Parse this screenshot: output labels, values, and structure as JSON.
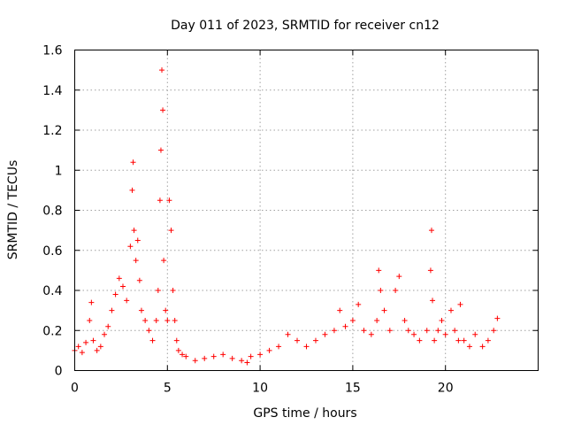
{
  "chart_data": {
    "type": "scatter",
    "title": "Day 011 of 2023, SRMTID for receiver cn12",
    "xlabel": "GPS time / hours",
    "ylabel": "SRMTID / TECUs",
    "xlim": [
      0,
      25
    ],
    "ylim": [
      0,
      1.6
    ],
    "xticks": [
      0,
      5,
      10,
      15,
      20
    ],
    "xtick_labels": [
      "0",
      "5",
      "10",
      "15",
      "20"
    ],
    "yticks": [
      0,
      0.2,
      0.4,
      0.6,
      0.8,
      1.0,
      1.2,
      1.4,
      1.6
    ],
    "ytick_labels": [
      "0",
      "0.2",
      "0.4",
      "0.6",
      "0.8",
      "1",
      "1.2",
      "1.4",
      "1.6"
    ],
    "grid": true,
    "marker": "plus",
    "series": [
      {
        "name": "cn12",
        "color": "#ff0000",
        "x": [
          0.0,
          0.2,
          0.4,
          0.6,
          0.8,
          0.9,
          1.0,
          1.2,
          1.4,
          1.6,
          1.8,
          2.0,
          2.2,
          2.4,
          2.6,
          2.8,
          3.0,
          3.1,
          3.15,
          3.2,
          3.3,
          3.4,
          3.5,
          3.6,
          3.8,
          4.0,
          4.2,
          4.4,
          4.5,
          4.6,
          4.65,
          4.7,
          4.75,
          4.8,
          4.9,
          5.0,
          5.1,
          5.2,
          5.3,
          5.4,
          5.5,
          5.6,
          5.8,
          6.0,
          6.5,
          7.0,
          7.5,
          8.0,
          8.5,
          9.0,
          9.3,
          9.5,
          10.0,
          10.5,
          11.0,
          11.5,
          12.0,
          12.5,
          13.0,
          13.5,
          14.0,
          14.3,
          14.6,
          15.0,
          15.3,
          15.6,
          16.0,
          16.3,
          16.4,
          16.5,
          16.7,
          17.0,
          17.3,
          17.5,
          17.8,
          18.0,
          18.3,
          18.6,
          19.0,
          19.2,
          19.25,
          19.3,
          19.4,
          19.6,
          19.8,
          20.0,
          20.3,
          20.5,
          20.7,
          20.8,
          21.0,
          21.3,
          21.6,
          22.0,
          22.3,
          22.6,
          22.8
        ],
        "y": [
          0.1,
          0.12,
          0.09,
          0.14,
          0.25,
          0.34,
          0.15,
          0.1,
          0.12,
          0.18,
          0.22,
          0.3,
          0.38,
          0.46,
          0.42,
          0.35,
          0.62,
          0.9,
          1.04,
          0.7,
          0.55,
          0.65,
          0.45,
          0.3,
          0.25,
          0.2,
          0.15,
          0.25,
          0.4,
          0.85,
          1.1,
          1.5,
          1.3,
          0.55,
          0.3,
          0.25,
          0.85,
          0.7,
          0.4,
          0.25,
          0.15,
          0.1,
          0.08,
          0.07,
          0.05,
          0.06,
          0.07,
          0.08,
          0.06,
          0.05,
          0.04,
          0.07,
          0.08,
          0.1,
          0.12,
          0.18,
          0.15,
          0.12,
          0.15,
          0.18,
          0.2,
          0.3,
          0.22,
          0.25,
          0.33,
          0.2,
          0.18,
          0.25,
          0.5,
          0.4,
          0.3,
          0.2,
          0.4,
          0.47,
          0.25,
          0.2,
          0.18,
          0.15,
          0.2,
          0.5,
          0.7,
          0.35,
          0.15,
          0.2,
          0.25,
          0.18,
          0.3,
          0.2,
          0.15,
          0.33,
          0.15,
          0.12,
          0.18,
          0.12,
          0.15,
          0.2,
          0.26
        ]
      }
    ]
  }
}
